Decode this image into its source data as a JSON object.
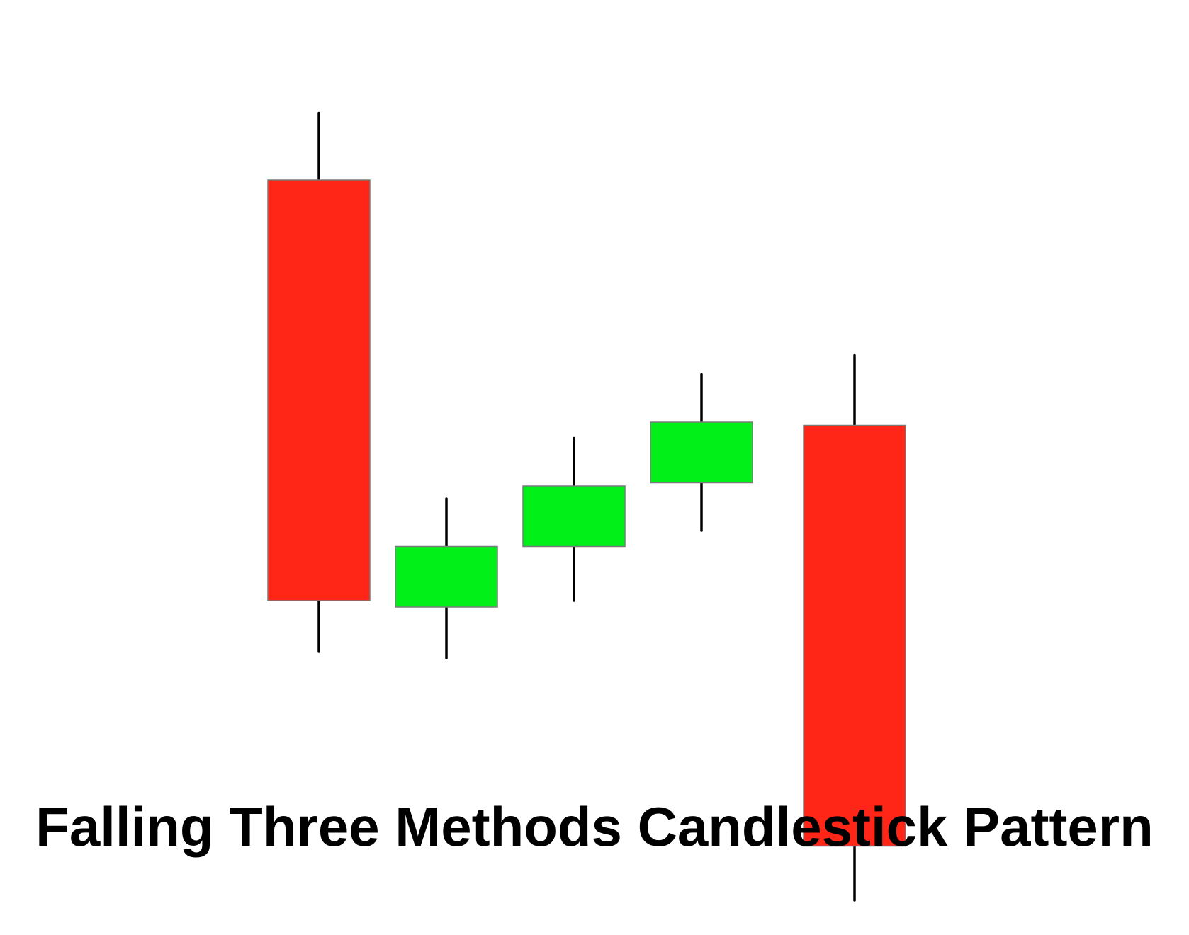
{
  "title": "Falling Three Methods Candlestick Pattern",
  "colors": {
    "bearish": "#ff2517",
    "bullish": "#00f017",
    "wick": "#000000",
    "body_border": "#7a7a7a",
    "background": "#ffffff"
  },
  "chart_data": {
    "type": "candlestick",
    "title": "Falling Three Methods Candlestick Pattern",
    "xlabel": "",
    "ylabel": "",
    "grid": false,
    "axes_visible": false,
    "candles": [
      {
        "direction": "bearish",
        "open": 94,
        "close": 28,
        "high": 104.5,
        "low": 20
      },
      {
        "direction": "bullish",
        "open": 27,
        "close": 36.5,
        "high": 44,
        "low": 19
      },
      {
        "direction": "bullish",
        "open": 36.5,
        "close": 46,
        "high": 53.5,
        "low": 28
      },
      {
        "direction": "bullish",
        "open": 46.5,
        "close": 56,
        "high": 63.5,
        "low": 39
      },
      {
        "direction": "bearish",
        "open": 55.5,
        "close": -10.5,
        "high": 66.5,
        "low": -19
      }
    ]
  }
}
